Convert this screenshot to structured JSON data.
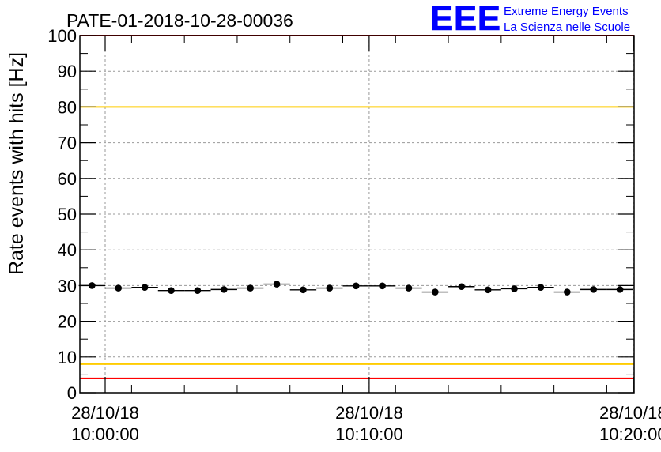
{
  "chart_data": {
    "type": "scatter",
    "title": "PATE-01-2018-10-28-00036",
    "xlabel": "",
    "ylabel": "Rate events with hits [Hz]",
    "ylim": [
      0,
      100
    ],
    "xlim": [
      "28/10/18 09:59:10",
      "28/10/18 10:20:00"
    ],
    "yticks": [
      "0",
      "10",
      "20",
      "30",
      "40",
      "50",
      "60",
      "70",
      "80",
      "90",
      "100"
    ],
    "xticks": [
      {
        "date": "28/10/18",
        "time": "10:00:00"
      },
      {
        "date": "28/10/18",
        "time": "10:10:00"
      },
      {
        "date": "28/10/18",
        "time": "10:20:00"
      }
    ],
    "grid": true,
    "series": [
      {
        "x": [
          "09:59:30",
          "10:00:30",
          "10:01:30",
          "10:02:30",
          "10:03:30",
          "10:04:30",
          "10:05:30",
          "10:06:30",
          "10:07:30",
          "10:08:30",
          "10:09:30",
          "10:10:30",
          "10:11:30",
          "10:12:30",
          "10:13:30",
          "10:14:30",
          "10:15:30",
          "10:16:30",
          "10:17:30",
          "10:18:30",
          "10:19:30"
        ],
        "values": [
          30.0,
          29.3,
          29.5,
          28.6,
          28.6,
          28.9,
          29.3,
          30.4,
          28.8,
          29.3,
          29.9,
          29.9,
          29.3,
          28.2,
          29.7,
          28.8,
          29.1,
          29.5,
          28.2,
          28.9,
          28.9
        ],
        "color": "#000000"
      }
    ],
    "reference_lines": [
      {
        "y": 100,
        "color": "#ff0000"
      },
      {
        "y": 80,
        "color": "#ffcc00"
      },
      {
        "y": 8,
        "color": "#ffcc00"
      },
      {
        "y": 4,
        "color": "#ff0000"
      }
    ]
  },
  "logo": {
    "mark": "EEE",
    "line1": "Extreme Energy Events",
    "line2": "La Scienza nelle Scuole",
    "color": "#0000ff"
  }
}
